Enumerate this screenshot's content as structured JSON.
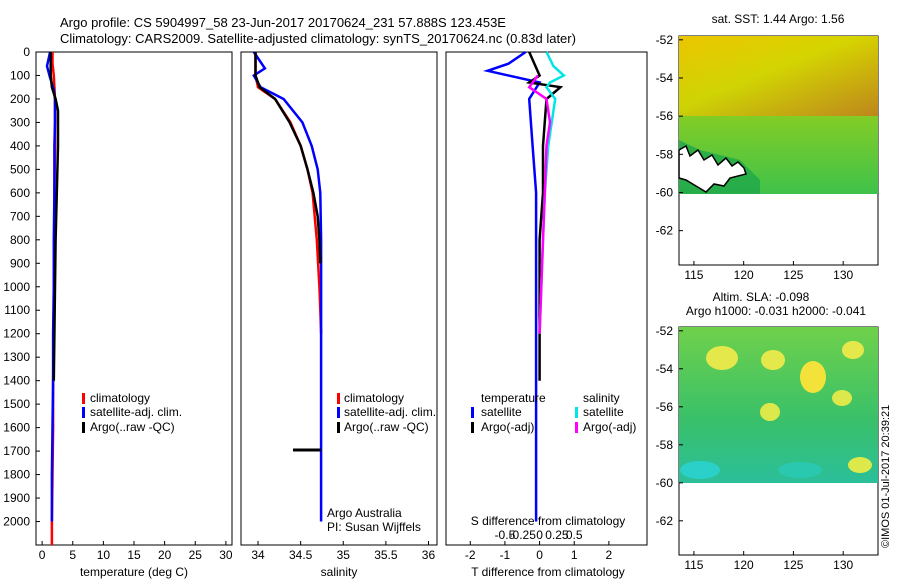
{
  "title": {
    "line1": "Argo profile: CS 5904997_58 23-Jun-2017 20170624_231 57.888S 123.453E",
    "line2": "Climatology: CARS2009. Satellite-adjusted climatology: synTS_20170624.nc (0.83d later)"
  },
  "chart_data": [
    {
      "type": "line",
      "panel": "temperature",
      "xlabel": "temperature (deg C)",
      "ylabel": "",
      "xlim": [
        -1,
        31
      ],
      "ylim": [
        2100,
        0
      ],
      "x_ticks": [
        0,
        5,
        10,
        15,
        20,
        25,
        30
      ],
      "y_ticks": [
        0,
        100,
        200,
        300,
        400,
        500,
        600,
        700,
        800,
        900,
        1000,
        1100,
        1200,
        1300,
        1400,
        1500,
        1600,
        1700,
        1800,
        1900,
        2000
      ],
      "legend": [
        "climatology",
        "satellite-adj. clim.",
        "Argo(..raw -QC)"
      ],
      "series": [
        {
          "name": "climatology",
          "color": "#ff0000",
          "x": [
            1.7,
            1.7,
            1.9,
            2.0,
            2.1,
            2.1,
            2.1,
            2.0,
            2.0,
            1.9,
            1.9,
            1.8,
            1.8,
            1.7,
            1.6,
            1.6
          ],
          "y": [
            0,
            50,
            100,
            150,
            200,
            300,
            400,
            600,
            800,
            1000,
            1200,
            1400,
            1600,
            1800,
            2000,
            2100
          ]
        },
        {
          "name": "satellite-adj. clim.",
          "color": "#0000ff",
          "x": [
            1.3,
            0.8,
            1.3,
            1.9,
            2.1,
            2.1,
            2.0,
            2.0,
            1.9,
            1.9,
            1.8,
            1.8,
            1.7,
            1.6,
            1.6
          ],
          "y": [
            0,
            60,
            110,
            160,
            200,
            300,
            400,
            600,
            800,
            1000,
            1200,
            1400,
            1600,
            1800,
            2000
          ]
        },
        {
          "name": "Argo(..raw -QC)",
          "color": "#000000",
          "x": [
            1.4,
            1.4,
            1.6,
            2.2,
            2.6,
            2.6,
            2.4,
            2.2,
            2.1,
            2.0,
            1.9
          ],
          "y": [
            0,
            100,
            150,
            200,
            250,
            400,
            600,
            800,
            1000,
            1200,
            1400
          ]
        }
      ]
    },
    {
      "type": "line",
      "panel": "salinity",
      "xlabel": "salinity",
      "ylabel": "",
      "xlim": [
        33.8,
        36.1
      ],
      "ylim": [
        2100,
        0
      ],
      "x_ticks": [
        34,
        34.5,
        35,
        35.5,
        36
      ],
      "legend": [
        "climatology",
        "satellite-adj. clim.",
        "Argo(..raw -QC)"
      ],
      "annotations": [
        "Argo Australia",
        "PI: Susan Wijffels"
      ],
      "series": [
        {
          "name": "climatology",
          "color": "#ff0000",
          "x": [
            33.97,
            33.97,
            34.0,
            34.2,
            34.38,
            34.5,
            34.58,
            34.64,
            34.69,
            34.72,
            34.73,
            34.74
          ],
          "y": [
            0,
            100,
            150,
            200,
            300,
            400,
            500,
            600,
            800,
            1000,
            1100,
            1200
          ]
        },
        {
          "name": "satellite-adj. clim.",
          "color": "#0000ff",
          "x": [
            33.95,
            34.08,
            33.95,
            34.03,
            34.3,
            34.52,
            34.63,
            34.7,
            34.73,
            34.74,
            34.74,
            34.74,
            34.74,
            34.74
          ],
          "y": [
            0,
            70,
            100,
            150,
            200,
            300,
            400,
            500,
            600,
            800,
            1000,
            1400,
            1800,
            2000
          ]
        },
        {
          "name": "Argo(..raw -QC)",
          "color": "#000000",
          "x": [
            33.97,
            33.97,
            34.02,
            34.2,
            34.37,
            34.5,
            34.58,
            34.65,
            34.7,
            34.72,
            34.73
          ],
          "y": [
            0,
            100,
            150,
            200,
            300,
            400,
            500,
            600,
            700,
            800,
            900
          ]
        }
      ]
    },
    {
      "type": "line",
      "panel": "difference",
      "xlabel": "T difference from climatology",
      "x2label": "S difference from climatology",
      "xlim": [
        -2.7,
        3.1
      ],
      "ylim": [
        2100,
        0
      ],
      "x_ticks": [
        -2,
        -1,
        0,
        1,
        2
      ],
      "x2_ticks": [
        "-0.5",
        "-0.25",
        "0",
        "0.25",
        "0.5"
      ],
      "legend_headers": [
        "temperature",
        "salinity"
      ],
      "legend": [
        "satellite",
        "Argo(-adj)",
        "satellite",
        "Argo(-adj)"
      ],
      "series": [
        {
          "name": "temperature satellite",
          "color": "#0000ff",
          "x": [
            -0.4,
            -0.9,
            -1.5,
            -0.6,
            0.0,
            -0.3,
            -0.2,
            -0.1,
            -0.1,
            -0.1,
            -0.1,
            -0.1,
            -0.1,
            -0.1
          ],
          "y": [
            0,
            50,
            80,
            110,
            130,
            200,
            400,
            600,
            800,
            1000,
            1200,
            1500,
            1800,
            2000
          ]
        },
        {
          "name": "temperature Argo(-adj)",
          "color": "#000000",
          "x": [
            -0.3,
            0.0,
            -0.3,
            0.6,
            0.2,
            0.1,
            0.1,
            0.0,
            0.0,
            0.0,
            0.0
          ],
          "y": [
            0,
            100,
            130,
            150,
            200,
            400,
            600,
            800,
            1000,
            1200,
            1400
          ]
        },
        {
          "name": "salinity satellite",
          "color": "#00e5e5",
          "x": [
            0.2,
            0.4,
            0.7,
            0.3,
            0.2,
            0.45,
            0.35,
            0.25,
            0.2,
            0.15,
            0.1,
            0.05,
            0.0
          ],
          "y": [
            0,
            60,
            100,
            130,
            150,
            200,
            300,
            400,
            500,
            600,
            800,
            1000,
            1200
          ]
        },
        {
          "name": "salinity Argo(-adj)",
          "color": "#ff00ff",
          "x": [
            -0.05,
            -0.3,
            0.2,
            0.3,
            0.2,
            0.15,
            0.1,
            0.05,
            0.0
          ],
          "y": [
            100,
            150,
            200,
            300,
            400,
            600,
            800,
            1000,
            1200
          ]
        }
      ]
    },
    {
      "type": "heatmap",
      "panel": "sst-map",
      "title": "sat. SST: 1.44 Argo: 1.56",
      "x_ticks": [
        115,
        120,
        125,
        130
      ],
      "y_ticks": [
        -52,
        -54,
        -56,
        -58,
        -60,
        -62
      ],
      "xlim": [
        113.5,
        133.5
      ],
      "ylim": [
        -63.8,
        -51.8
      ],
      "data_extent_y": [
        -60,
        -51.8
      ]
    },
    {
      "type": "heatmap",
      "panel": "sla-map",
      "title": "Altim. SLA: -0.098",
      "subtitle": "Argo h1000: -0.031 h2000: -0.041",
      "x_ticks": [
        115,
        120,
        125,
        130
      ],
      "y_ticks": [
        -52,
        -54,
        -56,
        -58,
        -60,
        -62
      ],
      "xlim": [
        113.5,
        133.5
      ],
      "ylim": [
        -63.8,
        -51.8
      ],
      "data_extent_y": [
        -60,
        -51.8
      ]
    }
  ],
  "credit": "©IMOS 01-Jul-2017 20:39:21",
  "colors": {
    "climatology": "#ff0000",
    "satellite": "#0000ff",
    "argo": "#000000",
    "sal_sat": "#00e5e5",
    "sal_argo": "#ff00ff"
  }
}
